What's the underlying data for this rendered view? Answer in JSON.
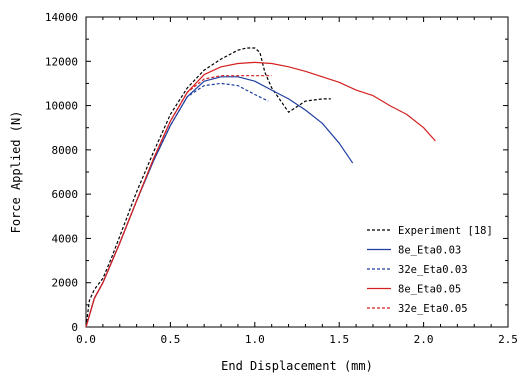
{
  "chart_data": {
    "type": "line",
    "title": "",
    "xlabel": "End Displacement (mm)",
    "ylabel": "Force Applied (N)",
    "xlim": [
      0.0,
      2.5
    ],
    "ylim": [
      0,
      14000
    ],
    "xticks": [
      0.0,
      0.5,
      1.0,
      1.5,
      2.0,
      2.5
    ],
    "xtick_labels": [
      "0.0",
      "0.5",
      "1.0",
      "1.5",
      "2.0",
      "2.5"
    ],
    "yticks": [
      0,
      2000,
      4000,
      6000,
      8000,
      10000,
      12000,
      14000
    ],
    "ytick_labels": [
      "0",
      "2000",
      "4000",
      "6000",
      "8000",
      "10000",
      "12000",
      "14000"
    ],
    "grid": false,
    "legend_position": "bottom-right",
    "series": [
      {
        "name": "Experiment [18]",
        "color": "#000000",
        "dash": "dashed",
        "x": [
          0.0,
          0.02,
          0.05,
          0.1,
          0.15,
          0.2,
          0.3,
          0.4,
          0.5,
          0.6,
          0.7,
          0.8,
          0.9,
          0.95,
          1.0,
          1.03,
          1.06,
          1.1,
          1.2,
          1.3,
          1.4,
          1.45
        ],
        "y": [
          0,
          1200,
          1700,
          2200,
          3100,
          4100,
          6100,
          7900,
          9600,
          10800,
          11600,
          12100,
          12500,
          12600,
          12600,
          12400,
          11500,
          10800,
          9700,
          10200,
          10300,
          10300
        ]
      },
      {
        "name": "8e_Eta0.03",
        "color": "#1f3fa0",
        "dash": "solid",
        "x": [
          0.0,
          0.05,
          0.1,
          0.2,
          0.3,
          0.4,
          0.5,
          0.6,
          0.7,
          0.8,
          0.9,
          1.0,
          1.1,
          1.2,
          1.3,
          1.4,
          1.5,
          1.58
        ],
        "y": [
          0,
          1300,
          2000,
          3800,
          5700,
          7500,
          9100,
          10400,
          11100,
          11300,
          11300,
          11100,
          10700,
          10300,
          9800,
          9200,
          8300,
          7400
        ]
      },
      {
        "name": "32e_Eta0.03",
        "color": "#1f3fa0",
        "dash": "dashed",
        "x": [
          0.0,
          0.05,
          0.1,
          0.2,
          0.3,
          0.4,
          0.5,
          0.6,
          0.7,
          0.8,
          0.9,
          1.0,
          1.08
        ],
        "y": [
          0,
          1300,
          2000,
          3800,
          5700,
          7500,
          9100,
          10400,
          10900,
          11000,
          10900,
          10500,
          10200
        ]
      },
      {
        "name": "8e_Eta0.05",
        "color": "#d42020",
        "dash": "solid",
        "x": [
          0.0,
          0.05,
          0.1,
          0.2,
          0.3,
          0.4,
          0.5,
          0.6,
          0.7,
          0.8,
          0.9,
          1.0,
          1.1,
          1.2,
          1.3,
          1.4,
          1.5,
          1.6,
          1.7,
          1.8,
          1.9,
          2.0,
          2.07
        ],
        "y": [
          0,
          1300,
          2000,
          3800,
          5700,
          7600,
          9300,
          10600,
          11400,
          11750,
          11900,
          11950,
          11900,
          11750,
          11550,
          11300,
          11050,
          10700,
          10450,
          10000,
          9600,
          9000,
          8400
        ]
      },
      {
        "name": "32e_Eta0.05",
        "color": "#d42020",
        "dash": "dashed",
        "x": [
          0.0,
          0.05,
          0.1,
          0.2,
          0.3,
          0.4,
          0.5,
          0.6,
          0.7,
          0.8,
          0.9,
          1.0,
          1.1
        ],
        "y": [
          0,
          1300,
          2000,
          3800,
          5700,
          7600,
          9300,
          10600,
          11200,
          11350,
          11350,
          11350,
          11350
        ]
      }
    ]
  }
}
